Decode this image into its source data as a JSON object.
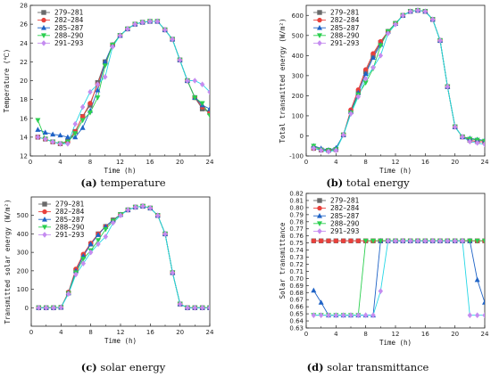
{
  "series_styles": [
    {
      "name": "279–281",
      "color": "#6a6a6a",
      "marker": "square"
    },
    {
      "name": "282–284",
      "color": "#e8413c",
      "marker": "circle"
    },
    {
      "name": "285–287",
      "color": "#1f63c6",
      "marker": "triangle-up"
    },
    {
      "name": "288–290",
      "color": "#2bcf4f",
      "marker": "triangle-down"
    },
    {
      "name": "291–293",
      "color": "#c58cf0",
      "marker": "diamond"
    }
  ],
  "line_color": "#26d7e6",
  "chart_data": [
    {
      "type": "line",
      "caption_tag": "(a)",
      "caption_text": " temperature",
      "xlabel": "Time (h)",
      "ylabel": "Temperature (℃)",
      "xlim": [
        0,
        24
      ],
      "ylim": [
        12,
        28
      ],
      "xticks": [
        0,
        4,
        8,
        12,
        16,
        20,
        24
      ],
      "yticks": [
        12,
        14,
        16,
        18,
        20,
        22,
        24,
        26,
        28
      ],
      "legend": "top-left",
      "x": [
        1,
        2,
        3,
        4,
        5,
        6,
        7,
        8,
        9,
        10,
        11,
        12,
        13,
        14,
        15,
        16,
        17,
        18,
        19,
        20,
        21,
        22,
        23,
        24
      ],
      "series": [
        {
          "name": "279–281",
          "values": [
            14.0,
            13.8,
            13.5,
            13.3,
            13.6,
            14.6,
            16.2,
            17.4,
            19.8,
            22.0,
            23.8,
            24.8,
            25.5,
            26.0,
            26.2,
            26.3,
            26.3,
            25.4,
            24.4,
            22.2,
            20.0,
            18.2,
            17.0,
            16.6
          ]
        },
        {
          "name": "282–284",
          "values": [
            14.0,
            13.8,
            13.5,
            13.3,
            13.5,
            14.6,
            16.2,
            17.6,
            19.6,
            21.8,
            23.8,
            24.8,
            25.5,
            26.0,
            26.2,
            26.3,
            26.3,
            25.4,
            24.4,
            22.2,
            20.0,
            18.2,
            17.2,
            16.6
          ]
        },
        {
          "name": "285–287",
          "values": [
            14.8,
            14.5,
            14.3,
            14.2,
            14.0,
            14.0,
            15.0,
            16.8,
            19.0,
            22.0,
            23.8,
            24.8,
            25.5,
            26.0,
            26.2,
            26.3,
            26.3,
            25.4,
            24.4,
            22.2,
            20.0,
            18.2,
            17.4,
            17.0
          ]
        },
        {
          "name": "288–290",
          "values": [
            15.8,
            13.8,
            13.5,
            13.3,
            13.5,
            14.4,
            15.8,
            16.6,
            18.2,
            21.6,
            23.8,
            24.8,
            25.5,
            26.0,
            26.2,
            26.3,
            26.3,
            25.4,
            24.4,
            22.2,
            20.0,
            18.2,
            17.6,
            16.3
          ]
        },
        {
          "name": "291–293",
          "values": [
            14.0,
            13.8,
            13.5,
            13.3,
            13.3,
            15.4,
            17.2,
            18.8,
            19.6,
            20.4,
            23.6,
            24.8,
            25.5,
            26.0,
            26.2,
            26.3,
            26.3,
            25.4,
            24.4,
            22.2,
            20.0,
            20.0,
            19.6,
            18.8
          ]
        }
      ]
    },
    {
      "type": "line",
      "caption_tag": "(b)",
      "caption_text": " total energy",
      "xlabel": "Time (h)",
      "ylabel": "Total transmitted energy (W/m²)",
      "xlim": [
        0,
        24
      ],
      "ylim": [
        -100,
        650
      ],
      "xticks": [
        0,
        4,
        8,
        12,
        16,
        20,
        24
      ],
      "yticks": [
        -100,
        0,
        100,
        200,
        300,
        400,
        500,
        600
      ],
      "legend": "top-left",
      "x": [
        1,
        2,
        3,
        4,
        5,
        6,
        7,
        8,
        9,
        10,
        11,
        12,
        13,
        14,
        15,
        16,
        17,
        18,
        19,
        20,
        21,
        22,
        23,
        24
      ],
      "series": [
        {
          "name": "279–281",
          "values": [
            -62,
            -70,
            -72,
            -68,
            5,
            120,
            215,
            320,
            400,
            465,
            520,
            560,
            600,
            620,
            625,
            620,
            580,
            475,
            245,
            45,
            -5,
            -22,
            -28,
            -30
          ]
        },
        {
          "name": "282–284",
          "values": [
            -62,
            -70,
            -72,
            -68,
            5,
            130,
            230,
            330,
            410,
            470,
            520,
            560,
            600,
            620,
            625,
            620,
            580,
            475,
            245,
            45,
            -5,
            -22,
            -28,
            -30
          ]
        },
        {
          "name": "285–287",
          "values": [
            -50,
            -62,
            -70,
            -60,
            5,
            120,
            215,
            310,
            390,
            455,
            520,
            560,
            600,
            620,
            625,
            620,
            580,
            475,
            245,
            45,
            -5,
            -12,
            -18,
            -22
          ]
        },
        {
          "name": "288–290",
          "values": [
            -50,
            -70,
            -72,
            -68,
            5,
            115,
            205,
            265,
            335,
            450,
            520,
            560,
            600,
            620,
            625,
            620,
            580,
            475,
            245,
            45,
            -5,
            -15,
            -20,
            -25
          ]
        },
        {
          "name": "291–293",
          "values": [
            -62,
            -72,
            -78,
            -72,
            5,
            110,
            195,
            285,
            340,
            400,
            510,
            555,
            600,
            620,
            625,
            620,
            580,
            475,
            245,
            45,
            -5,
            -28,
            -35,
            -42
          ]
        }
      ]
    },
    {
      "type": "line",
      "caption_tag": "(c)",
      "caption_text": " solar energy",
      "xlabel": "Time (h)",
      "ylabel": "Transmitted solar energy (W/m²)",
      "xlim": [
        0,
        24
      ],
      "ylim": [
        -100,
        600
      ],
      "xticks": [
        0,
        4,
        8,
        12,
        16,
        20,
        24
      ],
      "yticks": [
        0,
        100,
        200,
        300,
        400,
        500
      ],
      "legend": "top-left",
      "x": [
        1,
        2,
        3,
        4,
        5,
        6,
        7,
        8,
        9,
        10,
        11,
        12,
        13,
        14,
        15,
        16,
        17,
        18,
        19,
        20,
        21,
        22,
        23,
        24
      ],
      "series": [
        {
          "name": "279–281",
          "values": [
            0,
            0,
            0,
            2,
            80,
            200,
            280,
            345,
            400,
            440,
            475,
            505,
            530,
            545,
            550,
            540,
            500,
            400,
            190,
            20,
            0,
            0,
            0,
            0
          ]
        },
        {
          "name": "282–284",
          "values": [
            0,
            0,
            0,
            2,
            85,
            210,
            290,
            350,
            400,
            440,
            475,
            505,
            530,
            545,
            550,
            540,
            500,
            400,
            190,
            20,
            0,
            0,
            0,
            0
          ]
        },
        {
          "name": "285–287",
          "values": [
            0,
            0,
            0,
            2,
            80,
            200,
            280,
            345,
            395,
            440,
            475,
            505,
            530,
            545,
            550,
            540,
            500,
            400,
            190,
            20,
            0,
            0,
            0,
            0
          ]
        },
        {
          "name": "288–290",
          "values": [
            0,
            0,
            0,
            2,
            78,
            190,
            265,
            310,
            365,
            425,
            470,
            505,
            530,
            545,
            550,
            540,
            500,
            400,
            190,
            20,
            0,
            0,
            0,
            0
          ]
        },
        {
          "name": "291–293",
          "values": [
            0,
            0,
            0,
            2,
            75,
            180,
            240,
            300,
            345,
            385,
            460,
            500,
            530,
            545,
            550,
            540,
            500,
            400,
            190,
            20,
            0,
            0,
            0,
            0
          ]
        }
      ]
    },
    {
      "type": "line",
      "caption_tag": "(d)",
      "caption_text": " solar transmittance",
      "xlabel": "Time (h)",
      "ylabel": "Solar transmittance",
      "xlim": [
        0,
        24
      ],
      "ylim": [
        0.63,
        0.82
      ],
      "xticks": [
        0,
        4,
        8,
        12,
        16,
        20,
        24
      ],
      "yticks": [
        0.63,
        0.64,
        0.65,
        0.66,
        0.67,
        0.68,
        0.69,
        0.7,
        0.71,
        0.72,
        0.73,
        0.74,
        0.75,
        0.76,
        0.77,
        0.78,
        0.79,
        0.8,
        0.81,
        0.82
      ],
      "legend": "top-left",
      "x": [
        1,
        2,
        3,
        4,
        5,
        6,
        7,
        8,
        9,
        10,
        11,
        12,
        13,
        14,
        15,
        16,
        17,
        18,
        19,
        20,
        21,
        22,
        23,
        24
      ],
      "series": [
        {
          "name": "279–281",
          "values": [
            0.753,
            0.753,
            0.753,
            0.753,
            0.753,
            0.753,
            0.753,
            0.753,
            0.753,
            0.753,
            0.753,
            0.753,
            0.753,
            0.753,
            0.753,
            0.753,
            0.753,
            0.753,
            0.753,
            0.753,
            0.753,
            0.753,
            0.753,
            0.753
          ]
        },
        {
          "name": "282–284",
          "values": [
            0.753,
            0.753,
            0.753,
            0.753,
            0.753,
            0.753,
            0.753,
            0.753,
            0.753,
            0.753,
            0.753,
            0.753,
            0.753,
            0.753,
            0.753,
            0.753,
            0.753,
            0.753,
            0.753,
            0.753,
            0.753,
            0.753,
            0.753,
            0.753
          ]
        },
        {
          "name": "285–287",
          "values": [
            0.683,
            0.666,
            0.648,
            0.648,
            0.648,
            0.648,
            0.648,
            0.648,
            0.648,
            0.753,
            0.753,
            0.753,
            0.753,
            0.753,
            0.753,
            0.753,
            0.753,
            0.753,
            0.753,
            0.753,
            0.753,
            0.753,
            0.698,
            0.666
          ]
        },
        {
          "name": "288–290",
          "values": [
            0.648,
            0.648,
            0.648,
            0.648,
            0.648,
            0.648,
            0.648,
            0.753,
            0.753,
            0.753,
            0.753,
            0.753,
            0.753,
            0.753,
            0.753,
            0.753,
            0.753,
            0.753,
            0.753,
            0.753,
            0.753,
            0.753,
            0.753,
            0.753
          ]
        },
        {
          "name": "291–293",
          "values": [
            0.648,
            0.648,
            0.648,
            0.648,
            0.648,
            0.648,
            0.648,
            0.648,
            0.648,
            0.682,
            0.753,
            0.753,
            0.753,
            0.753,
            0.753,
            0.753,
            0.753,
            0.753,
            0.753,
            0.753,
            0.753,
            0.648,
            0.648,
            0.648
          ]
        }
      ]
    }
  ]
}
